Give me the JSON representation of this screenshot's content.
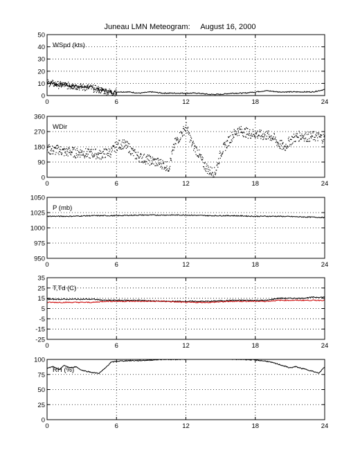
{
  "title": "Juneau LMN Meteogram:     August 16, 2000",
  "chart_data": [
    {
      "type": "line",
      "label": "WSpd (kts)",
      "xlim": [
        0,
        24
      ],
      "ylim": [
        0,
        50
      ],
      "x_ticks": [
        0,
        6,
        12,
        18,
        24
      ],
      "y_ticks": [
        0,
        10,
        20,
        30,
        40,
        50
      ],
      "grid": true,
      "series": [
        {
          "color": "#000000",
          "style": "scatter_then_line",
          "x": [
            0,
            0.5,
            1,
            1.5,
            2,
            2.5,
            3,
            3.5,
            4,
            4.5,
            5,
            5.5,
            6,
            7,
            8,
            9,
            10,
            11,
            12,
            13,
            14,
            15,
            16,
            17,
            18,
            19,
            20,
            21,
            22,
            23,
            24
          ],
          "y": [
            11,
            10,
            9,
            9,
            8,
            8,
            7,
            7,
            6,
            5,
            4,
            3,
            3,
            3,
            2,
            3,
            2,
            2,
            2,
            2,
            1,
            1,
            2,
            2,
            3,
            4,
            3,
            3,
            3,
            3,
            5
          ]
        }
      ]
    },
    {
      "type": "scatter",
      "label": "WDir",
      "xlim": [
        0,
        24
      ],
      "ylim": [
        0,
        360
      ],
      "x_ticks": [
        0,
        6,
        12,
        18,
        24
      ],
      "y_ticks": [
        0,
        90,
        180,
        270,
        360
      ],
      "grid": true,
      "series": [
        {
          "color": "#000000",
          "x": [
            0,
            0.5,
            1,
            1.5,
            2,
            2.5,
            3,
            3.5,
            4,
            4.5,
            5,
            5.5,
            6,
            6.5,
            7,
            7.5,
            8,
            8.5,
            9,
            9.5,
            10,
            10.5,
            11,
            11.5,
            12,
            12.5,
            13,
            13.5,
            14,
            14.5,
            15,
            15.5,
            16,
            16.5,
            17,
            17.5,
            18,
            18.5,
            19,
            19.5,
            20,
            20.5,
            21,
            21.5,
            22,
            22.5,
            23,
            23.5,
            24
          ],
          "y": [
            170,
            160,
            165,
            150,
            155,
            145,
            150,
            140,
            145,
            135,
            145,
            150,
            190,
            200,
            180,
            140,
            120,
            110,
            100,
            90,
            80,
            60,
            200,
            250,
            300,
            200,
            150,
            80,
            40,
            30,
            150,
            200,
            250,
            280,
            270,
            260,
            260,
            250,
            250,
            240,
            200,
            180,
            220,
            240,
            250,
            240,
            245,
            240,
            230
          ]
        }
      ]
    },
    {
      "type": "line",
      "label": "P (mb)",
      "xlim": [
        0,
        24
      ],
      "ylim": [
        950,
        1050
      ],
      "x_ticks": [
        0,
        6,
        12,
        18,
        24
      ],
      "y_ticks": [
        950,
        975,
        1000,
        1025,
        1050
      ],
      "grid": true,
      "series": [
        {
          "color": "#000000",
          "x": [
            0,
            2,
            4,
            6,
            8,
            10,
            12,
            14,
            16,
            18,
            20,
            22,
            24
          ],
          "y": [
            1019,
            1019,
            1020,
            1020,
            1021,
            1021,
            1021,
            1020,
            1020,
            1019,
            1019,
            1018,
            1017
          ]
        }
      ]
    },
    {
      "type": "line",
      "label": "T,Td (C)",
      "xlim": [
        0,
        24
      ],
      "ylim": [
        -25,
        35
      ],
      "x_ticks": [
        0,
        6,
        12,
        18,
        24
      ],
      "y_ticks": [
        -25,
        -15,
        -5,
        5,
        15,
        25,
        35
      ],
      "grid": true,
      "series": [
        {
          "color": "#000000",
          "x": [
            0,
            2,
            4,
            5,
            6,
            8,
            10,
            12,
            13,
            14,
            16,
            18,
            19,
            20,
            21,
            22,
            23,
            24
          ],
          "y": [
            14,
            14,
            14,
            13,
            13,
            13,
            12,
            12,
            12,
            12,
            13,
            13,
            13,
            15,
            15,
            15,
            16,
            16
          ]
        },
        {
          "color": "#cc0000",
          "x": [
            0,
            2,
            4,
            5,
            6,
            8,
            10,
            12,
            13,
            14,
            16,
            18,
            19,
            20,
            21,
            22,
            23,
            24
          ],
          "y": [
            11,
            11,
            11,
            12,
            12,
            12,
            12,
            11,
            11,
            11,
            12,
            12,
            12,
            13,
            13,
            13,
            13,
            13
          ]
        }
      ]
    },
    {
      "type": "line",
      "label": "RH (%)",
      "xlim": [
        0,
        24
      ],
      "ylim": [
        0,
        100
      ],
      "x_ticks": [
        0,
        6,
        12,
        18,
        24
      ],
      "y_ticks": [
        0,
        25,
        50,
        75,
        100
      ],
      "grid": true,
      "series": [
        {
          "color": "#000000",
          "x": [
            0,
            0.5,
            1,
            1.5,
            2,
            2.5,
            3,
            3.5,
            4,
            4.5,
            5,
            5.5,
            6,
            7,
            8,
            9,
            10,
            11,
            12
          ],
          "y": [
            85,
            88,
            83,
            90,
            86,
            88,
            82,
            80,
            78,
            77,
            85,
            95,
            97,
            98,
            98,
            99,
            100,
            100,
            100
          ]
        },
        {
          "color": "#000000",
          "x": [
            16,
            17,
            18,
            19,
            20,
            20.5,
            21,
            21.5,
            22,
            22.5,
            23,
            23.5,
            24
          ],
          "y": [
            100,
            100,
            99,
            97,
            92,
            89,
            86,
            88,
            85,
            83,
            80,
            77,
            88
          ]
        }
      ]
    }
  ]
}
